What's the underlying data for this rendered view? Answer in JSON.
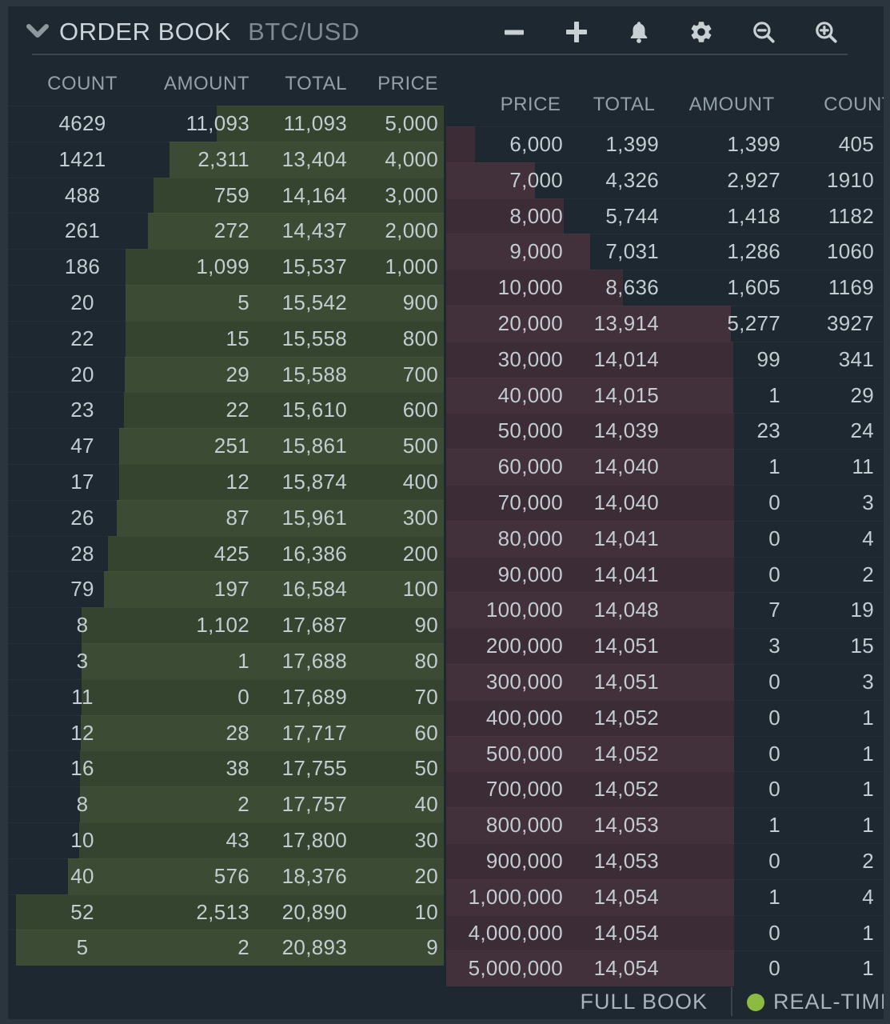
{
  "header": {
    "title": "ORDER BOOK",
    "pair": "BTC/USD",
    "icons": [
      "minus",
      "plus",
      "bell",
      "gear",
      "zoom-out",
      "zoom-in"
    ]
  },
  "bids": {
    "headers": [
      "COUNT",
      "AMOUNT",
      "TOTAL",
      "PRICE"
    ],
    "rows": [
      {
        "count": "4629",
        "amount": "11,093",
        "total": "11,093",
        "price": "5,000"
      },
      {
        "count": "1421",
        "amount": "2,311",
        "total": "13,404",
        "price": "4,000"
      },
      {
        "count": "488",
        "amount": "759",
        "total": "14,164",
        "price": "3,000"
      },
      {
        "count": "261",
        "amount": "272",
        "total": "14,437",
        "price": "2,000"
      },
      {
        "count": "186",
        "amount": "1,099",
        "total": "15,537",
        "price": "1,000"
      },
      {
        "count": "20",
        "amount": "5",
        "total": "15,542",
        "price": "900"
      },
      {
        "count": "22",
        "amount": "15",
        "total": "15,558",
        "price": "800"
      },
      {
        "count": "20",
        "amount": "29",
        "total": "15,588",
        "price": "700"
      },
      {
        "count": "23",
        "amount": "22",
        "total": "15,610",
        "price": "600"
      },
      {
        "count": "47",
        "amount": "251",
        "total": "15,861",
        "price": "500"
      },
      {
        "count": "17",
        "amount": "12",
        "total": "15,874",
        "price": "400"
      },
      {
        "count": "26",
        "amount": "87",
        "total": "15,961",
        "price": "300"
      },
      {
        "count": "28",
        "amount": "425",
        "total": "16,386",
        "price": "200"
      },
      {
        "count": "79",
        "amount": "197",
        "total": "16,584",
        "price": "100"
      },
      {
        "count": "8",
        "amount": "1,102",
        "total": "17,687",
        "price": "90"
      },
      {
        "count": "3",
        "amount": "1",
        "total": "17,688",
        "price": "80"
      },
      {
        "count": "11",
        "amount": "0",
        "total": "17,689",
        "price": "70"
      },
      {
        "count": "12",
        "amount": "28",
        "total": "17,717",
        "price": "60"
      },
      {
        "count": "16",
        "amount": "38",
        "total": "17,755",
        "price": "50"
      },
      {
        "count": "8",
        "amount": "2",
        "total": "17,757",
        "price": "40"
      },
      {
        "count": "10",
        "amount": "43",
        "total": "17,800",
        "price": "30"
      },
      {
        "count": "40",
        "amount": "576",
        "total": "18,376",
        "price": "20"
      },
      {
        "count": "52",
        "amount": "2,513",
        "total": "20,890",
        "price": "10"
      },
      {
        "count": "5",
        "amount": "2",
        "total": "20,893",
        "price": "9"
      }
    ]
  },
  "asks": {
    "headers": [
      "PRICE",
      "TOTAL",
      "AMOUNT",
      "COUNT"
    ],
    "rows": [
      {
        "price": "6,000",
        "total": "1,399",
        "amount": "1,399",
        "count": "405"
      },
      {
        "price": "7,000",
        "total": "4,326",
        "amount": "2,927",
        "count": "1910"
      },
      {
        "price": "8,000",
        "total": "5,744",
        "amount": "1,418",
        "count": "1182"
      },
      {
        "price": "9,000",
        "total": "7,031",
        "amount": "1,286",
        "count": "1060"
      },
      {
        "price": "10,000",
        "total": "8,636",
        "amount": "1,605",
        "count": "1169"
      },
      {
        "price": "20,000",
        "total": "13,914",
        "amount": "5,277",
        "count": "3927"
      },
      {
        "price": "30,000",
        "total": "14,014",
        "amount": "99",
        "count": "341"
      },
      {
        "price": "40,000",
        "total": "14,015",
        "amount": "1",
        "count": "29"
      },
      {
        "price": "50,000",
        "total": "14,039",
        "amount": "23",
        "count": "24"
      },
      {
        "price": "60,000",
        "total": "14,040",
        "amount": "1",
        "count": "11"
      },
      {
        "price": "70,000",
        "total": "14,040",
        "amount": "0",
        "count": "3"
      },
      {
        "price": "80,000",
        "total": "14,041",
        "amount": "0",
        "count": "4"
      },
      {
        "price": "90,000",
        "total": "14,041",
        "amount": "0",
        "count": "2"
      },
      {
        "price": "100,000",
        "total": "14,048",
        "amount": "7",
        "count": "19"
      },
      {
        "price": "200,000",
        "total": "14,051",
        "amount": "3",
        "count": "15"
      },
      {
        "price": "300,000",
        "total": "14,051",
        "amount": "0",
        "count": "3"
      },
      {
        "price": "400,000",
        "total": "14,052",
        "amount": "0",
        "count": "1"
      },
      {
        "price": "500,000",
        "total": "14,052",
        "amount": "0",
        "count": "1"
      },
      {
        "price": "700,000",
        "total": "14,052",
        "amount": "0",
        "count": "1"
      },
      {
        "price": "800,000",
        "total": "14,053",
        "amount": "1",
        "count": "1"
      },
      {
        "price": "900,000",
        "total": "14,053",
        "amount": "0",
        "count": "2"
      },
      {
        "price": "1,000,000",
        "total": "14,054",
        "amount": "1",
        "count": "4"
      },
      {
        "price": "4,000,000",
        "total": "14,054",
        "amount": "0",
        "count": "1"
      },
      {
        "price": "5,000,000",
        "total": "14,054",
        "amount": "0",
        "count": "1"
      }
    ]
  },
  "footer": {
    "full_book_label": "FULL BOOK",
    "status_label": "REAL-TIME"
  },
  "colors": {
    "bid_bar": "#35442e",
    "ask_bar": "#3b2c35",
    "panel_bg": "#1e2831",
    "status_dot": "#8cbb41"
  }
}
